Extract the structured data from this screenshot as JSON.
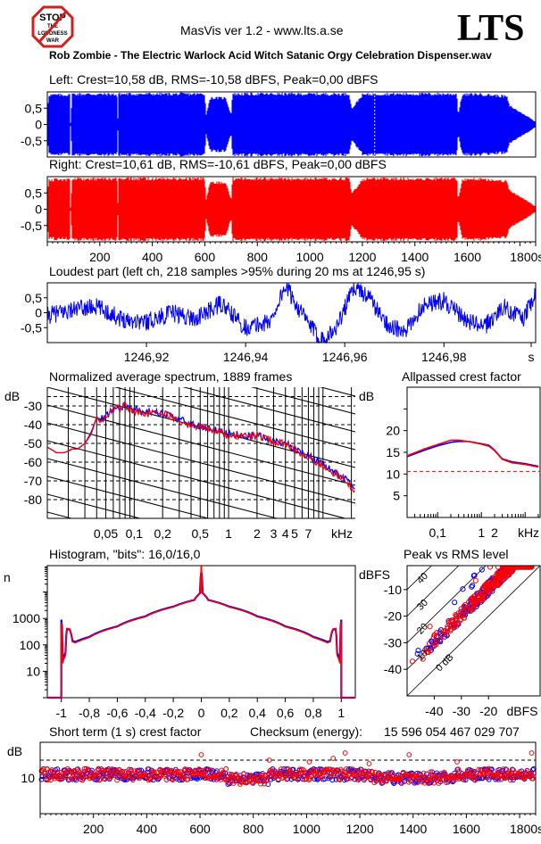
{
  "header": {
    "app_title": "MasVis ver 1.2 - www.lts.a.se",
    "brand": "LTS",
    "badge": {
      "line1": "STOP",
      "line2": "THE",
      "line3": "LOUDNESS",
      "line4": "WAR"
    },
    "file_name": "Rob Zombie - The Electric Warlock Acid Witch Satanic Orgy Celebration Dispenser.wav"
  },
  "colors": {
    "left": "#0000ff",
    "right": "#ff0000",
    "axis": "#000000",
    "background": "#ffffff"
  },
  "chart_data": [
    {
      "id": "left_waveform",
      "type": "area",
      "title": "Left: Crest=10,58 dB, RMS=-10,58 dBFS, Peak=0,00 dBFS",
      "xlim": [
        0,
        1860
      ],
      "ylim": [
        -1,
        1
      ],
      "yticks": [
        "0,5",
        "0",
        "-0,5"
      ],
      "marker_at_s": 1246.95,
      "envelope": [
        [
          0,
          0.2
        ],
        [
          5,
          0.95
        ],
        [
          85,
          0.95
        ],
        [
          88,
          0.0
        ],
        [
          95,
          0.98
        ],
        [
          265,
          0.97
        ],
        [
          268,
          0.05
        ],
        [
          272,
          0.98
        ],
        [
          600,
          0.98
        ],
        [
          605,
          0.3
        ],
        [
          620,
          0.85
        ],
        [
          680,
          0.85
        ],
        [
          700,
          0.3
        ],
        [
          705,
          0.98
        ],
        [
          1150,
          0.98
        ],
        [
          1160,
          0.5
        ],
        [
          1200,
          0.95
        ],
        [
          1240,
          0.98
        ],
        [
          1560,
          0.98
        ],
        [
          1565,
          0.3
        ],
        [
          1580,
          0.95
        ],
        [
          1640,
          0.98
        ],
        [
          1750,
          0.9
        ],
        [
          1760,
          0.6
        ],
        [
          1800,
          0.4
        ],
        [
          1840,
          0.2
        ],
        [
          1855,
          0.1
        ]
      ]
    },
    {
      "id": "right_waveform",
      "type": "area",
      "title": "Right: Crest=10,61 dB, RMS=-10,61 dBFS, Peak=0,00 dBFS",
      "xlim": [
        0,
        1860
      ],
      "ylim": [
        -1,
        1
      ],
      "yticks": [
        "0,5",
        "0",
        "-0,5"
      ],
      "xticks": [
        "200",
        "400",
        "600",
        "800",
        "1000",
        "1200",
        "1400",
        "1600",
        "1800s"
      ],
      "envelope": [
        [
          0,
          0.2
        ],
        [
          5,
          0.95
        ],
        [
          85,
          0.95
        ],
        [
          88,
          0.0
        ],
        [
          95,
          0.98
        ],
        [
          265,
          0.97
        ],
        [
          268,
          0.05
        ],
        [
          272,
          0.98
        ],
        [
          600,
          0.98
        ],
        [
          605,
          0.3
        ],
        [
          620,
          0.85
        ],
        [
          680,
          0.85
        ],
        [
          700,
          0.3
        ],
        [
          705,
          0.98
        ],
        [
          1150,
          0.98
        ],
        [
          1160,
          0.5
        ],
        [
          1200,
          0.95
        ],
        [
          1240,
          0.98
        ],
        [
          1560,
          0.98
        ],
        [
          1565,
          0.3
        ],
        [
          1580,
          0.95
        ],
        [
          1640,
          0.98
        ],
        [
          1750,
          0.9
        ],
        [
          1760,
          0.6
        ],
        [
          1800,
          0.4
        ],
        [
          1840,
          0.2
        ],
        [
          1855,
          0.1
        ]
      ]
    },
    {
      "id": "loudest_part",
      "type": "line",
      "title": "Loudest part (left  ch, 218 samples >95% during 20 ms at 1246,95 s)",
      "xlim": [
        1246.9,
        1246.9985
      ],
      "ylim": [
        -1,
        1
      ],
      "yticks": [
        "0,5",
        "0",
        "-0,5"
      ],
      "xticks": [
        "1246,92",
        "1246,94",
        "1246,96",
        "1246,98",
        "s"
      ],
      "wave_keypoints": [
        [
          1246.9,
          -0.1
        ],
        [
          1246.905,
          0.1
        ],
        [
          1246.91,
          0.2
        ],
        [
          1246.915,
          -0.2
        ],
        [
          1246.92,
          -0.3
        ],
        [
          1246.925,
          0.0
        ],
        [
          1246.93,
          -0.2
        ],
        [
          1246.935,
          0.3
        ],
        [
          1246.94,
          -0.5
        ],
        [
          1246.945,
          -0.3
        ],
        [
          1246.948,
          0.9
        ],
        [
          1246.952,
          -0.2
        ],
        [
          1246.955,
          -0.9
        ],
        [
          1246.958,
          -0.6
        ],
        [
          1246.962,
          0.9
        ],
        [
          1246.965,
          0.5
        ],
        [
          1246.968,
          -0.3
        ],
        [
          1246.972,
          -0.7
        ],
        [
          1246.976,
          0.3
        ],
        [
          1246.98,
          0.4
        ],
        [
          1246.984,
          -0.2
        ],
        [
          1246.988,
          -0.5
        ],
        [
          1246.992,
          0.2
        ],
        [
          1246.996,
          -0.2
        ],
        [
          1246.9985,
          0.6
        ]
      ]
    },
    {
      "id": "spectrum",
      "type": "line",
      "title": "Normalized average spectrum, 1889 frames",
      "ylabel": "dB",
      "xlabel": "kHz",
      "ylim": [
        -90,
        -20
      ],
      "yticks": [
        -30,
        -40,
        -50,
        -60,
        -70,
        -80
      ],
      "xlim_khz": [
        0.012,
        22
      ],
      "xticks": [
        "0,05",
        "0,1",
        "0,2",
        "0,5",
        "1",
        "2",
        "3",
        "4",
        "5",
        "7"
      ],
      "xtick_values_khz": [
        0.05,
        0.1,
        0.2,
        0.5,
        1,
        2,
        3,
        4,
        5,
        7
      ],
      "series": [
        {
          "name": "left",
          "points_khz_db": [
            [
              0.012,
              -52
            ],
            [
              0.015,
              -55
            ],
            [
              0.018,
              -55
            ],
            [
              0.022,
              -53
            ],
            [
              0.025,
              -53
            ],
            [
              0.03,
              -50
            ],
            [
              0.035,
              -44
            ],
            [
              0.04,
              -36
            ],
            [
              0.045,
              -37
            ],
            [
              0.05,
              -36
            ],
            [
              0.06,
              -32
            ],
            [
              0.07,
              -31
            ],
            [
              0.08,
              -30
            ],
            [
              0.1,
              -32
            ],
            [
              0.12,
              -33
            ],
            [
              0.15,
              -33
            ],
            [
              0.2,
              -34
            ],
            [
              0.3,
              -37
            ],
            [
              0.4,
              -40
            ],
            [
              0.5,
              -41
            ],
            [
              0.7,
              -43
            ],
            [
              1,
              -45
            ],
            [
              1.5,
              -46
            ],
            [
              2,
              -46
            ],
            [
              3,
              -49
            ],
            [
              4,
              -50
            ],
            [
              5,
              -53
            ],
            [
              7,
              -57
            ],
            [
              10,
              -61
            ],
            [
              14,
              -66
            ],
            [
              18,
              -70
            ],
            [
              22,
              -73
            ]
          ]
        },
        {
          "name": "right",
          "points_khz_db": [
            [
              0.012,
              -52
            ],
            [
              0.015,
              -55
            ],
            [
              0.018,
              -55
            ],
            [
              0.022,
              -53
            ],
            [
              0.025,
              -53
            ],
            [
              0.03,
              -50
            ],
            [
              0.035,
              -45
            ],
            [
              0.04,
              -36
            ],
            [
              0.045,
              -38
            ],
            [
              0.05,
              -36
            ],
            [
              0.06,
              -32
            ],
            [
              0.07,
              -31
            ],
            [
              0.08,
              -30
            ],
            [
              0.1,
              -33
            ],
            [
              0.12,
              -34
            ],
            [
              0.15,
              -34
            ],
            [
              0.2,
              -34
            ],
            [
              0.3,
              -38
            ],
            [
              0.4,
              -41
            ],
            [
              0.5,
              -41
            ],
            [
              0.7,
              -43
            ],
            [
              1,
              -46
            ],
            [
              1.5,
              -46
            ],
            [
              2,
              -46
            ],
            [
              3,
              -49
            ],
            [
              4,
              -50
            ],
            [
              5,
              -54
            ],
            [
              7,
              -58
            ],
            [
              10,
              -62
            ],
            [
              14,
              -67
            ],
            [
              18,
              -71
            ],
            [
              22,
              -75
            ]
          ]
        }
      ]
    },
    {
      "id": "allpassed_crest",
      "type": "line",
      "title": "Allpassed crest factor",
      "ylabel": "dB",
      "xlabel": "kHz",
      "ylim": [
        0,
        30
      ],
      "yticks": [
        20,
        15,
        10,
        5
      ],
      "xticks": [
        "0,1",
        "1",
        "2",
        "kHz"
      ],
      "reference_db": 10.6,
      "series": [
        {
          "name": "left",
          "points_khz_db": [
            [
              0.02,
              14
            ],
            [
              0.05,
              15.5
            ],
            [
              0.1,
              16.5
            ],
            [
              0.2,
              17.3
            ],
            [
              0.3,
              17.5
            ],
            [
              0.5,
              17.5
            ],
            [
              1,
              17
            ],
            [
              1.5,
              16.6
            ],
            [
              2,
              15.5
            ],
            [
              3,
              13.5
            ],
            [
              5,
              12.8
            ],
            [
              10,
              12.4
            ],
            [
              20,
              11.8
            ]
          ]
        },
        {
          "name": "right",
          "points_khz_db": [
            [
              0.02,
              14.2
            ],
            [
              0.05,
              15.8
            ],
            [
              0.1,
              16.8
            ],
            [
              0.2,
              17.8
            ],
            [
              0.3,
              17.8
            ],
            [
              0.5,
              17.5
            ],
            [
              1,
              16.9
            ],
            [
              1.5,
              16.4
            ],
            [
              2,
              15.4
            ],
            [
              3,
              13.4
            ],
            [
              5,
              12.6
            ],
            [
              10,
              12.2
            ],
            [
              20,
              11.6
            ]
          ]
        }
      ]
    },
    {
      "id": "histogram",
      "type": "line",
      "title": "Histogram, \"bits\": 16,0/16,0",
      "ylabel": "n",
      "ylim_log": [
        1,
        100000
      ],
      "yticks": [
        "1000",
        "100",
        "10"
      ],
      "xlim": [
        -1.1,
        1.1
      ],
      "xticks": [
        "-1",
        "-0,8",
        "-0,6",
        "-0,4",
        "-0,2",
        "0",
        "0,2",
        "0,4",
        "0,6",
        "0,8",
        "1"
      ],
      "series": [
        {
          "name": "left",
          "points": [
            [
              -1.0,
              900
            ],
            [
              -0.99,
              25
            ],
            [
              -0.97,
              50
            ],
            [
              -0.96,
              400
            ],
            [
              -0.94,
              380
            ],
            [
              -0.92,
              140
            ],
            [
              -0.9,
              130
            ],
            [
              -0.8,
              200
            ],
            [
              -0.6,
              500
            ],
            [
              -0.4,
              1200
            ],
            [
              -0.2,
              2800
            ],
            [
              -0.05,
              5000
            ],
            [
              -0.01,
              9000
            ],
            [
              0,
              60000
            ],
            [
              0.01,
              9000
            ],
            [
              0.05,
              5000
            ],
            [
              0.2,
              2800
            ],
            [
              0.4,
              1200
            ],
            [
              0.6,
              500
            ],
            [
              0.8,
              200
            ],
            [
              0.9,
              130
            ],
            [
              0.92,
              140
            ],
            [
              0.94,
              380
            ],
            [
              0.96,
              400
            ],
            [
              0.97,
              50
            ],
            [
              0.99,
              25
            ],
            [
              1.0,
              900
            ]
          ]
        },
        {
          "name": "right",
          "points": [
            [
              -1.0,
              700
            ],
            [
              -0.99,
              20
            ],
            [
              -0.97,
              40
            ],
            [
              -0.96,
              420
            ],
            [
              -0.94,
              400
            ],
            [
              -0.92,
              130
            ],
            [
              -0.9,
              120
            ],
            [
              -0.8,
              190
            ],
            [
              -0.6,
              480
            ],
            [
              -0.4,
              1150
            ],
            [
              -0.2,
              2700
            ],
            [
              -0.05,
              4900
            ],
            [
              -0.01,
              8800
            ],
            [
              0,
              60000
            ],
            [
              0.01,
              8800
            ],
            [
              0.05,
              4900
            ],
            [
              0.2,
              2700
            ],
            [
              0.4,
              1150
            ],
            [
              0.6,
              480
            ],
            [
              0.8,
              190
            ],
            [
              0.9,
              120
            ],
            [
              0.92,
              130
            ],
            [
              0.94,
              400
            ],
            [
              0.96,
              420
            ],
            [
              0.97,
              40
            ],
            [
              0.99,
              20
            ],
            [
              1.0,
              800
            ]
          ]
        }
      ]
    },
    {
      "id": "peak_vs_rms",
      "type": "scatter",
      "title": "Peak vs RMS level",
      "ylabel": "dBFS",
      "xlabel": "dBFS",
      "xlim": [
        -50,
        -1
      ],
      "ylim": [
        -50,
        -1
      ],
      "xticks": [
        "-40",
        "-30",
        "-20"
      ],
      "yticks": [
        "-10",
        "-20",
        "-30",
        "-40"
      ],
      "diagonal_labels": [
        "40",
        "30",
        "20",
        "10",
        "0 dB"
      ],
      "crest_lines_db": [
        0,
        10,
        20,
        30,
        40
      ],
      "cluster": {
        "rms_range": [
          -49,
          -4
        ],
        "crest_range": [
          8,
          14
        ]
      }
    },
    {
      "id": "short_term_crest",
      "type": "scatter",
      "title": "Short term (1 s) crest factor",
      "checksum_label": "Checksum (energy):",
      "checksum_value": "15 596 054 467 029 707",
      "ylabel": "dB",
      "xlim": [
        0,
        1860
      ],
      "ylim": [
        0,
        20
      ],
      "yticks": [
        "10"
      ],
      "reference_db": 15,
      "xticks": [
        "200",
        "400",
        "600",
        "800",
        "1000",
        "1200",
        "1400",
        "1600",
        "1800s"
      ],
      "typical_range_db": [
        9,
        13
      ],
      "outliers": [
        [
          605,
          16.5
        ],
        [
          860,
          15
        ],
        [
          1010,
          14.5
        ],
        [
          1100,
          15.5
        ],
        [
          1145,
          17
        ],
        [
          1235,
          14
        ],
        [
          1385,
          16.5
        ],
        [
          1565,
          14.5
        ],
        [
          1845,
          17
        ]
      ]
    }
  ]
}
